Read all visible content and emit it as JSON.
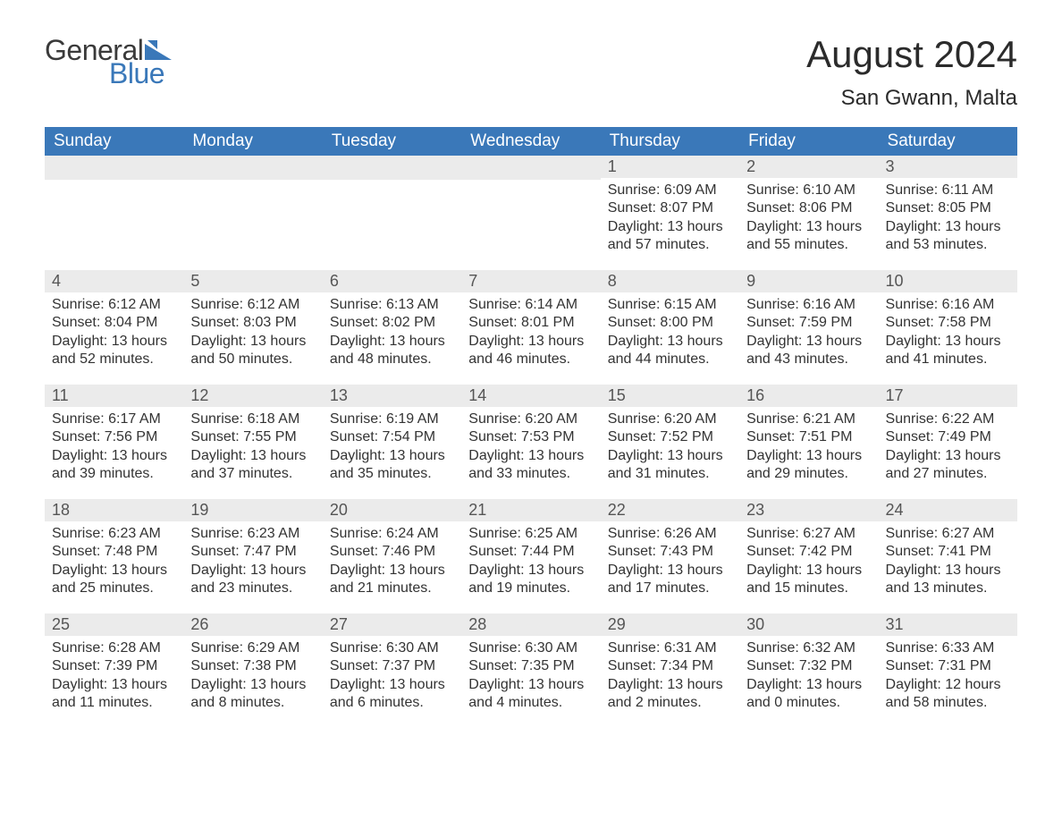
{
  "logo": {
    "text1": "General",
    "text2": "Blue",
    "flag_color": "#3a78b9"
  },
  "title": "August 2024",
  "location": "San Gwann, Malta",
  "colors": {
    "header_bg": "#3a78b9",
    "header_text": "#ffffff",
    "daynum_bg": "#ebebeb",
    "daynum_text": "#555555",
    "body_text": "#333333",
    "cell_border": "#3a78b9",
    "page_bg": "#ffffff"
  },
  "typography": {
    "title_fontsize": 42,
    "location_fontsize": 24,
    "dayheader_fontsize": 19,
    "daynum_fontsize": 18,
    "body_fontsize": 16,
    "font_family": "Arial"
  },
  "layout": {
    "columns": 7,
    "rows": 5,
    "first_day_column_index": 4
  },
  "day_headers": [
    "Sunday",
    "Monday",
    "Tuesday",
    "Wednesday",
    "Thursday",
    "Friday",
    "Saturday"
  ],
  "days": [
    {
      "n": 1,
      "sunrise": "6:09 AM",
      "sunset": "8:07 PM",
      "daylight": "13 hours and 57 minutes."
    },
    {
      "n": 2,
      "sunrise": "6:10 AM",
      "sunset": "8:06 PM",
      "daylight": "13 hours and 55 minutes."
    },
    {
      "n": 3,
      "sunrise": "6:11 AM",
      "sunset": "8:05 PM",
      "daylight": "13 hours and 53 minutes."
    },
    {
      "n": 4,
      "sunrise": "6:12 AM",
      "sunset": "8:04 PM",
      "daylight": "13 hours and 52 minutes."
    },
    {
      "n": 5,
      "sunrise": "6:12 AM",
      "sunset": "8:03 PM",
      "daylight": "13 hours and 50 minutes."
    },
    {
      "n": 6,
      "sunrise": "6:13 AM",
      "sunset": "8:02 PM",
      "daylight": "13 hours and 48 minutes."
    },
    {
      "n": 7,
      "sunrise": "6:14 AM",
      "sunset": "8:01 PM",
      "daylight": "13 hours and 46 minutes."
    },
    {
      "n": 8,
      "sunrise": "6:15 AM",
      "sunset": "8:00 PM",
      "daylight": "13 hours and 44 minutes."
    },
    {
      "n": 9,
      "sunrise": "6:16 AM",
      "sunset": "7:59 PM",
      "daylight": "13 hours and 43 minutes."
    },
    {
      "n": 10,
      "sunrise": "6:16 AM",
      "sunset": "7:58 PM",
      "daylight": "13 hours and 41 minutes."
    },
    {
      "n": 11,
      "sunrise": "6:17 AM",
      "sunset": "7:56 PM",
      "daylight": "13 hours and 39 minutes."
    },
    {
      "n": 12,
      "sunrise": "6:18 AM",
      "sunset": "7:55 PM",
      "daylight": "13 hours and 37 minutes."
    },
    {
      "n": 13,
      "sunrise": "6:19 AM",
      "sunset": "7:54 PM",
      "daylight": "13 hours and 35 minutes."
    },
    {
      "n": 14,
      "sunrise": "6:20 AM",
      "sunset": "7:53 PM",
      "daylight": "13 hours and 33 minutes."
    },
    {
      "n": 15,
      "sunrise": "6:20 AM",
      "sunset": "7:52 PM",
      "daylight": "13 hours and 31 minutes."
    },
    {
      "n": 16,
      "sunrise": "6:21 AM",
      "sunset": "7:51 PM",
      "daylight": "13 hours and 29 minutes."
    },
    {
      "n": 17,
      "sunrise": "6:22 AM",
      "sunset": "7:49 PM",
      "daylight": "13 hours and 27 minutes."
    },
    {
      "n": 18,
      "sunrise": "6:23 AM",
      "sunset": "7:48 PM",
      "daylight": "13 hours and 25 minutes."
    },
    {
      "n": 19,
      "sunrise": "6:23 AM",
      "sunset": "7:47 PM",
      "daylight": "13 hours and 23 minutes."
    },
    {
      "n": 20,
      "sunrise": "6:24 AM",
      "sunset": "7:46 PM",
      "daylight": "13 hours and 21 minutes."
    },
    {
      "n": 21,
      "sunrise": "6:25 AM",
      "sunset": "7:44 PM",
      "daylight": "13 hours and 19 minutes."
    },
    {
      "n": 22,
      "sunrise": "6:26 AM",
      "sunset": "7:43 PM",
      "daylight": "13 hours and 17 minutes."
    },
    {
      "n": 23,
      "sunrise": "6:27 AM",
      "sunset": "7:42 PM",
      "daylight": "13 hours and 15 minutes."
    },
    {
      "n": 24,
      "sunrise": "6:27 AM",
      "sunset": "7:41 PM",
      "daylight": "13 hours and 13 minutes."
    },
    {
      "n": 25,
      "sunrise": "6:28 AM",
      "sunset": "7:39 PM",
      "daylight": "13 hours and 11 minutes."
    },
    {
      "n": 26,
      "sunrise": "6:29 AM",
      "sunset": "7:38 PM",
      "daylight": "13 hours and 8 minutes."
    },
    {
      "n": 27,
      "sunrise": "6:30 AM",
      "sunset": "7:37 PM",
      "daylight": "13 hours and 6 minutes."
    },
    {
      "n": 28,
      "sunrise": "6:30 AM",
      "sunset": "7:35 PM",
      "daylight": "13 hours and 4 minutes."
    },
    {
      "n": 29,
      "sunrise": "6:31 AM",
      "sunset": "7:34 PM",
      "daylight": "13 hours and 2 minutes."
    },
    {
      "n": 30,
      "sunrise": "6:32 AM",
      "sunset": "7:32 PM",
      "daylight": "13 hours and 0 minutes."
    },
    {
      "n": 31,
      "sunrise": "6:33 AM",
      "sunset": "7:31 PM",
      "daylight": "12 hours and 58 minutes."
    }
  ],
  "labels": {
    "sunrise": "Sunrise:",
    "sunset": "Sunset:",
    "daylight": "Daylight:"
  }
}
